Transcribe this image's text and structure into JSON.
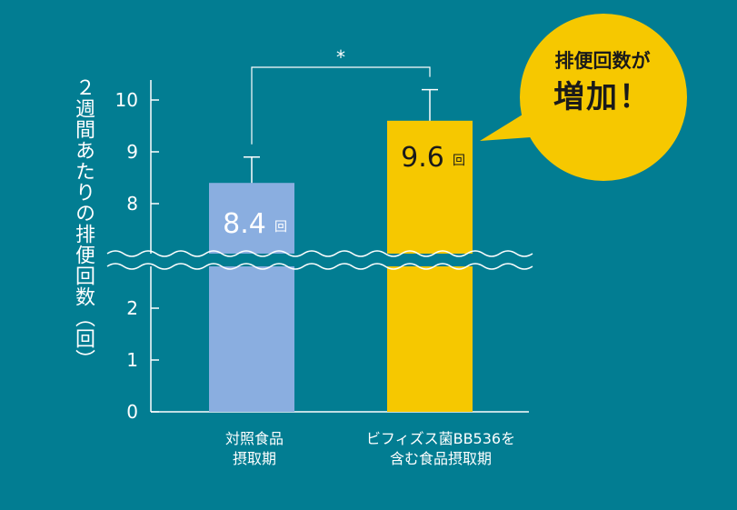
{
  "chart_data": {
    "type": "bar",
    "ylabel": "２週間あたりの排便回数（回）",
    "categories": [
      [
        "対照食品",
        "摂取期"
      ],
      [
        "ビフィズス菌BB536を",
        "含む食品摂取期"
      ]
    ],
    "values": [
      8.4,
      9.6
    ],
    "data_labels": [
      {
        "value": "8.4",
        "unit": "回"
      },
      {
        "value": "9.6",
        "unit": "回"
      }
    ],
    "error_upper": [
      8.9,
      10.2
    ],
    "y_ticks": [
      0,
      1,
      2,
      8,
      9,
      10
    ],
    "y_axis_break": [
      2.6,
      7.6
    ],
    "ylim": [
      0,
      10.5
    ],
    "bar_colors": [
      "#8aaee0",
      "#f6c800"
    ],
    "significance_marker": "*",
    "grid": false
  },
  "callout": {
    "line1": "排便回数が",
    "line2": "増加！",
    "color": "#f6c800"
  },
  "colors": {
    "background": "#027d92",
    "axis": "#ffffff",
    "label_dark": "#1a1a1a"
  }
}
